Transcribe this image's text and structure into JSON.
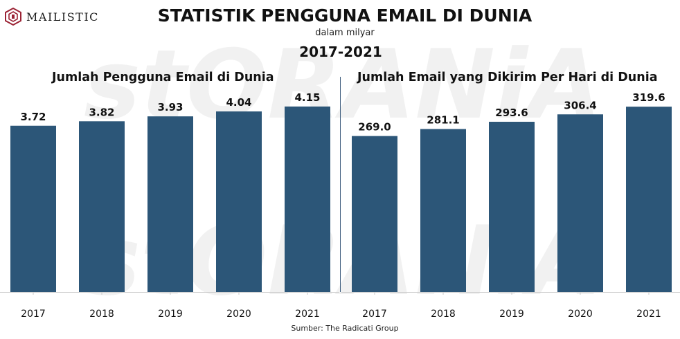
{
  "brand": {
    "name": "MAILISTIC",
    "watermark": "stORANiA"
  },
  "header": {
    "title": "STATISTIK PENGGUNA EMAIL DI DUNIA",
    "subtitle": "dalam milyar",
    "years": "2017-2021"
  },
  "colors": {
    "bar": "#2c5678",
    "baseline": "#c9c9c9",
    "divider": "#3b5b7c"
  },
  "chart_data": [
    {
      "type": "bar",
      "title": "Jumlah Pengguna Email di Dunia",
      "categories": [
        "2017",
        "2018",
        "2019",
        "2020",
        "2021"
      ],
      "values": [
        3.72,
        3.82,
        3.93,
        4.04,
        4.15
      ],
      "value_labels": [
        "3.72",
        "3.82",
        "3.93",
        "4.04",
        "4.15"
      ],
      "ylim": [
        0,
        4.8
      ],
      "grid": false
    },
    {
      "type": "bar",
      "title": "Jumlah Email yang Dikirim Per Hari di Dunia",
      "categories": [
        "2017",
        "2018",
        "2019",
        "2020",
        "2021"
      ],
      "values": [
        269.0,
        281.1,
        293.6,
        306.4,
        319.6
      ],
      "value_labels": [
        "269.0",
        "281.1",
        "293.6",
        "306.4",
        "319.6"
      ],
      "ylim": [
        0,
        370
      ],
      "grid": false
    }
  ],
  "footer": {
    "source": "Sumber: The Radicati Group"
  }
}
